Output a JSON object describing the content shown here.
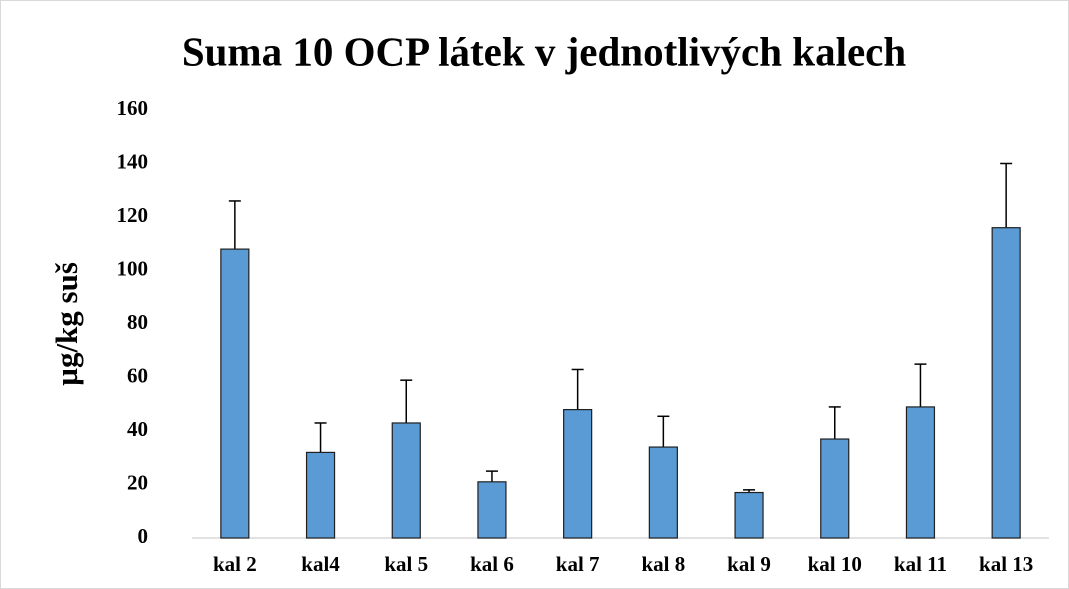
{
  "chart_data": {
    "type": "bar",
    "title": "Suma 10 OCP látek v jednotlivých kalech",
    "y_label": "µg/kg suš",
    "categories": [
      "kal 2",
      "kal4",
      "kal 5",
      "kal 6",
      "kal 7",
      "kal 8",
      "kal 9",
      "kal 10",
      "kal 11",
      "kal 13"
    ],
    "values": [
      108,
      32,
      43,
      21,
      48,
      34,
      17,
      37,
      49,
      116
    ],
    "errors": [
      18,
      11,
      16,
      4,
      15,
      11.5,
      1,
      12,
      16,
      24
    ],
    "color": "#5b9bd5",
    "ylim": [
      0,
      160
    ],
    "yticks": [
      0,
      20,
      40,
      60,
      80,
      100,
      120,
      140,
      160
    ],
    "grid": false
  }
}
